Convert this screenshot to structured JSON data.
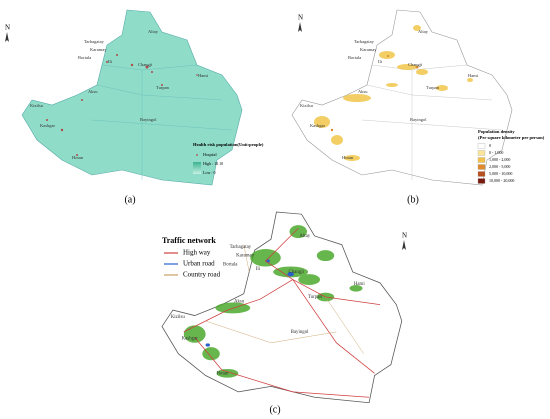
{
  "regions": [
    "Altay",
    "Tarbagatay",
    "Karamay",
    "Bortala",
    "Ili",
    "Changji",
    "Hami",
    "Turpan",
    "Aksu",
    "Kizilsu",
    "Kashgar",
    "Bayingol",
    "Hotan"
  ],
  "north": "N",
  "panel_a": {
    "caption": "(a)",
    "legend": {
      "title": "Health risk population(Unit:people)",
      "hospital": "Hospital",
      "high": "High : 10.10",
      "low": "Low : 0"
    }
  },
  "panel_b": {
    "caption": "(b)",
    "legend": {
      "title": "Population density",
      "subtitle": "(Per square kilometer per person)",
      "classes": [
        "0",
        "0 - 1,000",
        "1,000 - 2,000",
        "2,000 - 5,000",
        "5,000 - 10,000",
        "10,000 - 20,000"
      ]
    }
  },
  "panel_c": {
    "caption": "(c)",
    "legend": {
      "title": "Traffic network",
      "items": [
        "High way",
        "Urban road",
        "Country road"
      ]
    }
  }
}
